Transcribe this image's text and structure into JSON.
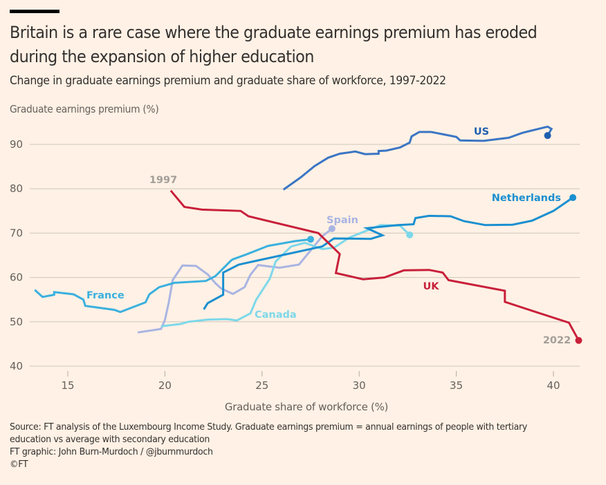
{
  "header": {
    "title": "Britain is a rare case where the graduate earnings premium has eroded during the expansion of higher education",
    "subtitle": "Change in graduate earnings premium and graduate share of workforce, 1997-2022"
  },
  "footer": {
    "source_line1": "Source: FT analysis of the Luxembourg Income Study. Graduate earnings premium = annual earnings of people with tertiary",
    "source_line2": "education vs average with secondary education",
    "credit": "FT graphic: John Burn-Murdoch / @jburnmurdoch",
    "copyright": "©FT"
  },
  "chart_data": {
    "type": "line",
    "title": "Britain is a rare case where the graduate earnings premium has eroded during the expansion of higher education",
    "subtitle": "Change in graduate earnings premium and graduate share of workforce, 1997-2022",
    "xlabel": "Graduate share of workforce (%)",
    "ylabel": "Graduate earnings premium (%)",
    "xlim": [
      13.2,
      41.5
    ],
    "ylim": [
      40,
      95
    ],
    "xticks": [
      15,
      20,
      25,
      30,
      35,
      40
    ],
    "yticks": [
      40,
      50,
      60,
      70,
      80,
      90
    ],
    "grid": "horizontal",
    "legend": "direct labels",
    "annotations": [
      {
        "text": "1997",
        "series": "UK",
        "position": "start"
      },
      {
        "text": "2022",
        "series": "UK",
        "position": "end"
      }
    ],
    "series": [
      {
        "name": "US",
        "color": "#3a75c4",
        "end_color": "#1e5fae",
        "points": [
          [
            26.1,
            79.8
          ],
          [
            27.0,
            82.6
          ],
          [
            27.7,
            85.1
          ],
          [
            28.4,
            87.0
          ],
          [
            29.0,
            87.9
          ],
          [
            29.8,
            88.4
          ],
          [
            30.3,
            87.8
          ],
          [
            31.0,
            87.9
          ],
          [
            31.0,
            88.5
          ],
          [
            31.4,
            88.6
          ],
          [
            32.1,
            89.3
          ],
          [
            32.6,
            90.4
          ],
          [
            32.7,
            91.8
          ],
          [
            33.1,
            92.8
          ],
          [
            33.7,
            92.8
          ],
          [
            35.0,
            91.7
          ],
          [
            35.2,
            90.9
          ],
          [
            36.4,
            90.8
          ],
          [
            37.7,
            91.5
          ],
          [
            38.4,
            92.6
          ],
          [
            39.7,
            94.0
          ],
          [
            39.9,
            93.5
          ],
          [
            39.7,
            92.0
          ]
        ]
      },
      {
        "name": "Netherlands",
        "color": "#1a8fd0",
        "points": [
          [
            22.0,
            52.8
          ],
          [
            22.2,
            54.2
          ],
          [
            23.0,
            56.1
          ],
          [
            23.0,
            61.1
          ],
          [
            23.8,
            62.9
          ],
          [
            28.1,
            67.0
          ],
          [
            28.7,
            68.8
          ],
          [
            30.6,
            68.7
          ],
          [
            31.2,
            69.5
          ],
          [
            30.4,
            71.1
          ],
          [
            32.0,
            71.8
          ],
          [
            32.8,
            72.0
          ],
          [
            32.9,
            73.4
          ],
          [
            33.6,
            73.9
          ],
          [
            34.7,
            73.8
          ],
          [
            35.4,
            72.7
          ],
          [
            36.5,
            71.8
          ],
          [
            37.9,
            71.9
          ],
          [
            38.9,
            72.8
          ],
          [
            40.0,
            75.0
          ],
          [
            41.0,
            78.0
          ]
        ]
      },
      {
        "name": "France",
        "color": "#39b0df",
        "points": [
          [
            13.3,
            57.2
          ],
          [
            13.7,
            55.6
          ],
          [
            14.3,
            56.1
          ],
          [
            14.3,
            56.7
          ],
          [
            15.3,
            56.2
          ],
          [
            15.8,
            55.0
          ],
          [
            15.9,
            53.6
          ],
          [
            16.4,
            53.3
          ],
          [
            17.4,
            52.7
          ],
          [
            17.7,
            52.2
          ],
          [
            19.0,
            54.4
          ],
          [
            19.2,
            56.2
          ],
          [
            19.7,
            57.8
          ],
          [
            20.5,
            58.8
          ],
          [
            22.1,
            59.2
          ],
          [
            22.6,
            60.3
          ],
          [
            23.4,
            63.8
          ],
          [
            23.5,
            64.1
          ],
          [
            24.2,
            65.2
          ],
          [
            25.3,
            67.1
          ],
          [
            26.7,
            68.2
          ],
          [
            27.5,
            68.6
          ]
        ]
      },
      {
        "name": "Spain",
        "color": "#a9b4e3",
        "points": [
          [
            18.6,
            47.6
          ],
          [
            19.8,
            48.4
          ],
          [
            20.0,
            50.4
          ],
          [
            20.2,
            54.4
          ],
          [
            20.4,
            59.4
          ],
          [
            20.9,
            62.7
          ],
          [
            21.6,
            62.6
          ],
          [
            22.2,
            60.7
          ],
          [
            22.6,
            58.7
          ],
          [
            22.9,
            57.5
          ],
          [
            23.5,
            56.3
          ],
          [
            24.1,
            57.8
          ],
          [
            24.4,
            60.6
          ],
          [
            24.8,
            62.8
          ],
          [
            25.9,
            62.2
          ],
          [
            26.9,
            62.9
          ],
          [
            28.1,
            69.3
          ],
          [
            28.6,
            71.0
          ]
        ]
      },
      {
        "name": "Canada",
        "color": "#7dd8ea",
        "points": [
          [
            19.8,
            49.0
          ],
          [
            20.8,
            49.5
          ],
          [
            21.2,
            50.0
          ],
          [
            22.2,
            50.5
          ],
          [
            23.2,
            50.6
          ],
          [
            23.7,
            50.3
          ],
          [
            24.4,
            51.9
          ],
          [
            24.7,
            55.0
          ],
          [
            25.4,
            59.7
          ],
          [
            25.7,
            63.6
          ],
          [
            26.5,
            67.0
          ],
          [
            27.2,
            67.8
          ],
          [
            28.1,
            66.4
          ],
          [
            28.7,
            66.7
          ],
          [
            29.5,
            69.0
          ],
          [
            31.1,
            71.8
          ],
          [
            32.1,
            71.7
          ],
          [
            32.6,
            69.6
          ]
        ]
      },
      {
        "name": "UK",
        "color": "#c8203a",
        "points": [
          [
            20.3,
            79.6
          ],
          [
            21.0,
            75.9
          ],
          [
            21.9,
            75.3
          ],
          [
            23.9,
            75.0
          ],
          [
            24.3,
            73.8
          ],
          [
            27.9,
            70.0
          ],
          [
            29.0,
            65.3
          ],
          [
            28.8,
            61.0
          ],
          [
            30.2,
            59.6
          ],
          [
            31.3,
            60.0
          ],
          [
            32.3,
            61.6
          ],
          [
            33.6,
            61.7
          ],
          [
            34.3,
            61.1
          ],
          [
            34.6,
            59.4
          ],
          [
            37.5,
            57.0
          ],
          [
            37.5,
            54.5
          ],
          [
            38.9,
            52.5
          ],
          [
            40.8,
            49.8
          ],
          [
            41.3,
            45.8
          ]
        ]
      }
    ]
  }
}
